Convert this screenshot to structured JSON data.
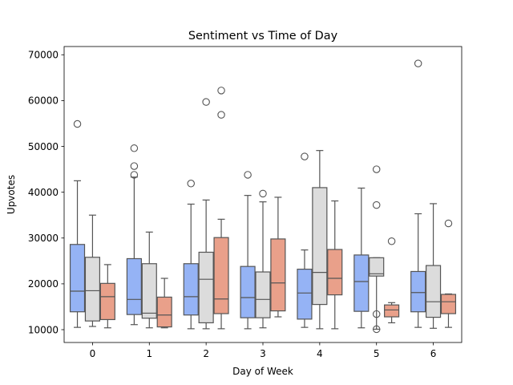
{
  "chart_data": {
    "type": "box",
    "title": "Sentiment vs Time of Day",
    "xlabel": "Day of Week",
    "ylabel": "Upvotes",
    "categories": [
      "0",
      "1",
      "2",
      "3",
      "4",
      "5",
      "6"
    ],
    "ylim": [
      7200,
      71800
    ],
    "yticks": [
      10000,
      20000,
      30000,
      40000,
      50000,
      60000,
      70000
    ],
    "ytick_labels": [
      "10000",
      "20000",
      "30000",
      "40000",
      "50000",
      "60000",
      "70000"
    ],
    "grid": false,
    "legend": "none",
    "series": [
      {
        "color": "#95b3f5",
        "boxes": [
          {
            "category": "0",
            "whislo": 10500,
            "q1": 13900,
            "med": 18400,
            "q3": 28600,
            "whishi": 42500,
            "fliers": [
              54900
            ]
          },
          {
            "category": "1",
            "whislo": 11100,
            "q1": 13300,
            "med": 16600,
            "q3": 25500,
            "whishi": 43300,
            "fliers": [
              43800,
              45700,
              49600
            ]
          },
          {
            "category": "2",
            "whislo": 10200,
            "q1": 13200,
            "med": 17200,
            "q3": 24400,
            "whishi": 37400,
            "fliers": [
              41900
            ]
          },
          {
            "category": "3",
            "whislo": 10200,
            "q1": 12600,
            "med": 17000,
            "q3": 23800,
            "whishi": 39300,
            "fliers": [
              43800
            ]
          },
          {
            "category": "4",
            "whislo": 10500,
            "q1": 12300,
            "med": 18000,
            "q3": 23200,
            "whishi": 27400,
            "fliers": [
              47800
            ]
          },
          {
            "category": "5",
            "whislo": 10400,
            "q1": 14000,
            "med": 20500,
            "q3": 26300,
            "whishi": 40900,
            "fliers": []
          },
          {
            "category": "6",
            "whislo": 10500,
            "q1": 13900,
            "med": 18100,
            "q3": 22700,
            "whishi": 35300,
            "fliers": [
              68100
            ]
          }
        ]
      },
      {
        "color": "#dcdcdc",
        "boxes": [
          {
            "category": "0",
            "whislo": 10700,
            "q1": 11900,
            "med": 18500,
            "q3": 25800,
            "whishi": 35000,
            "fliers": []
          },
          {
            "category": "1",
            "whislo": 10400,
            "q1": 12500,
            "med": 13600,
            "q3": 24400,
            "whishi": 31300,
            "fliers": []
          },
          {
            "category": "2",
            "whislo": 10200,
            "q1": 11500,
            "med": 21000,
            "q3": 26900,
            "whishi": 38300,
            "fliers": [
              59700
            ]
          },
          {
            "category": "3",
            "whislo": 10400,
            "q1": 12600,
            "med": 16600,
            "q3": 22600,
            "whishi": 37900,
            "fliers": [
              39700
            ]
          },
          {
            "category": "4",
            "whislo": 10200,
            "q1": 15500,
            "med": 22500,
            "q3": 41000,
            "whishi": 49100,
            "fliers": []
          },
          {
            "category": "5",
            "whislo": 10100,
            "q1": 21700,
            "med": 22200,
            "q3": 25700,
            "whishi": 25700,
            "fliers": [
              10100,
              13400,
              37200,
              45000
            ]
          },
          {
            "category": "6",
            "whislo": 10300,
            "q1": 12700,
            "med": 16100,
            "q3": 24000,
            "whishi": 37500,
            "fliers": []
          }
        ]
      },
      {
        "color": "#e9a08a",
        "boxes": [
          {
            "category": "0",
            "whislo": 10400,
            "q1": 12200,
            "med": 17200,
            "q3": 20100,
            "whishi": 24200,
            "fliers": []
          },
          {
            "category": "1",
            "whislo": 10400,
            "q1": 10600,
            "med": 13200,
            "q3": 17100,
            "whishi": 21200,
            "fliers": []
          },
          {
            "category": "2",
            "whislo": 10200,
            "q1": 13500,
            "med": 16700,
            "q3": 30100,
            "whishi": 34100,
            "fliers": [
              56900,
              62200
            ]
          },
          {
            "category": "3",
            "whislo": 12800,
            "q1": 14100,
            "med": 20200,
            "q3": 29800,
            "whishi": 38900,
            "fliers": []
          },
          {
            "category": "4",
            "whislo": 10200,
            "q1": 17600,
            "med": 21200,
            "q3": 27500,
            "whishi": 38100,
            "fliers": []
          },
          {
            "category": "5",
            "whislo": 11500,
            "q1": 12800,
            "med": 14300,
            "q3": 15400,
            "whishi": 15900,
            "fliers": [
              29300
            ]
          },
          {
            "category": "6",
            "whislo": 10500,
            "q1": 13500,
            "med": 16100,
            "q3": 17700,
            "whishi": 17800,
            "fliers": [
              33200
            ]
          }
        ]
      }
    ]
  }
}
